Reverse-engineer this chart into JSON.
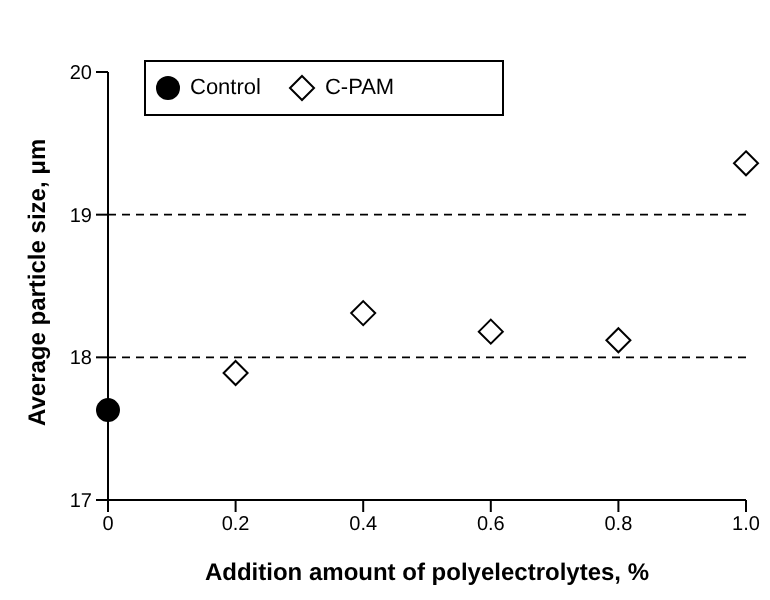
{
  "chart_data": {
    "type": "scatter",
    "xlabel": "Addition amount of polyelectrolytes, %",
    "ylabel": "Average particle size, μm",
    "series": [
      {
        "name": "Control",
        "color": "#000000",
        "marker": "circle",
        "x": [
          0
        ],
        "values": [
          17.63
        ]
      },
      {
        "name": "C-PAM",
        "color": "#000000",
        "marker": "diamond",
        "x": [
          0.2,
          0.4,
          0.6,
          0.8,
          1.0
        ],
        "values": [
          17.89,
          18.31,
          18.18,
          18.12,
          19.36
        ]
      }
    ],
    "xlim": [
      0,
      1
    ],
    "xticks": [
      0,
      0.2,
      0.4,
      0.6,
      0.8,
      {
        "value": 1,
        "label": "1.0"
      }
    ],
    "ylim": [
      17,
      20
    ],
    "yticks": [
      17,
      18,
      19,
      20
    ],
    "grid": "y",
    "line_style": "dashed",
    "legend": "top left"
  }
}
